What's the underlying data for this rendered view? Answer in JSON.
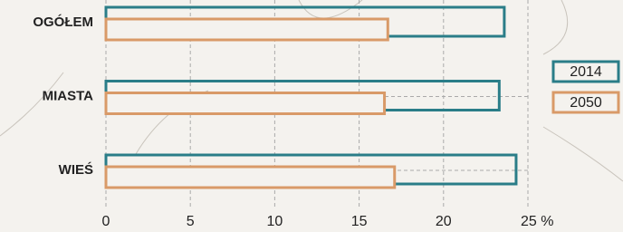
{
  "chart_data": {
    "type": "bar",
    "orientation": "horizontal",
    "categories": [
      "OGÓŁEM",
      "MIASTA",
      "WIEŚ"
    ],
    "series": [
      {
        "name": "2014",
        "color": "#2a7d88",
        "values": [
          23.6,
          23.3,
          24.3
        ]
      },
      {
        "name": "2050",
        "color": "#d99a68",
        "values": [
          16.7,
          16.5,
          17.1
        ]
      }
    ],
    "xlim": [
      0,
      25
    ],
    "xticks": [
      0,
      5,
      10,
      15,
      20,
      {
        "value": 25,
        "label": "25 %"
      }
    ],
    "grid": true,
    "legend": "right"
  }
}
